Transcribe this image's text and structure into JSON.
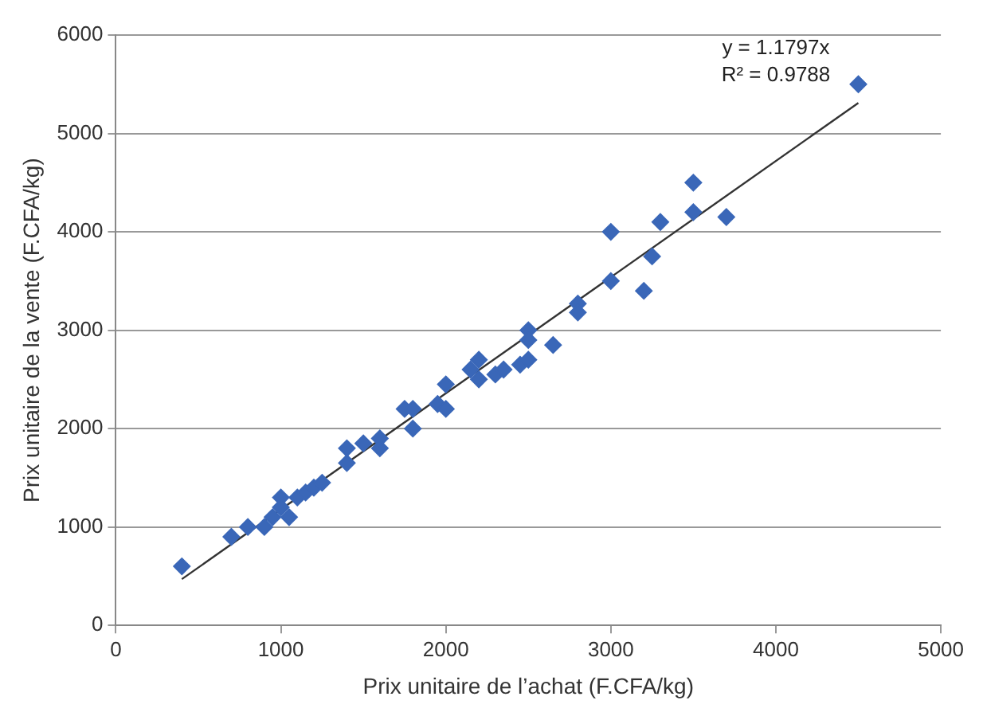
{
  "chart_data": {
    "type": "scatter",
    "xlabel": "Prix unitaire de l’achat (F.CFA/kg)",
    "ylabel": "Prix unitaire de la vente (F.CFA/kg)",
    "xlim": [
      0,
      5000
    ],
    "xticks": [
      0,
      1000,
      2000,
      3000,
      4000,
      5000
    ],
    "ylim": [
      0,
      6000
    ],
    "yticks": [
      0,
      1000,
      2000,
      3000,
      4000,
      5000,
      6000
    ],
    "grid": "y",
    "legend": false,
    "marker": "diamond",
    "annotations": [
      "y = 1.1797x",
      "R² = 0.9788"
    ],
    "series": [
      {
        "color": "#3a67b8",
        "x": [
          400,
          700,
          800,
          900,
          950,
          1000,
          1000,
          1050,
          1100,
          1150,
          1200,
          1250,
          1400,
          1400,
          1500,
          1600,
          1600,
          1750,
          1800,
          1800,
          1950,
          2000,
          2000,
          2150,
          2200,
          2200,
          2300,
          2350,
          2450,
          2500,
          2500,
          2500,
          2650,
          2800,
          2800,
          3000,
          3000,
          3200,
          3250,
          3300,
          3500,
          3500,
          3700,
          4500
        ],
        "values": [
          600,
          900,
          1000,
          1000,
          1100,
          1300,
          1200,
          1100,
          1300,
          1350,
          1400,
          1450,
          1650,
          1800,
          1850,
          1800,
          1900,
          2200,
          2000,
          2200,
          2250,
          2450,
          2200,
          2600,
          2700,
          2500,
          2550,
          2600,
          2650,
          3000,
          2900,
          2700,
          2850,
          3270,
          3180,
          4000,
          3500,
          3400,
          3750,
          4100,
          4500,
          4200,
          4150,
          5500
        ]
      },
      {
        "type": "line",
        "color": "#333333",
        "marker": "none",
        "x": [
          400,
          4500
        ],
        "values": [
          470,
          5310
        ]
      }
    ]
  }
}
